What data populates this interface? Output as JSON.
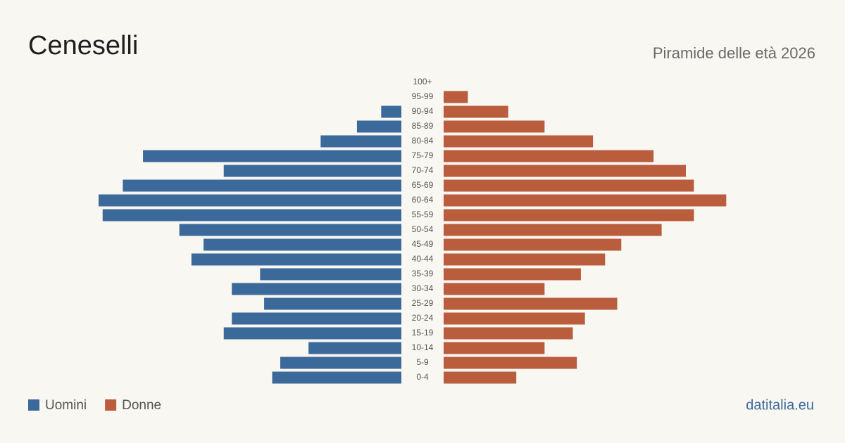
{
  "chart_data": {
    "type": "population-pyramid",
    "title": "Ceneselli",
    "subtitle": "Piramide delle età 2026",
    "source": "datitalia.eu",
    "categories": [
      "100+",
      "95-99",
      "90-94",
      "85-89",
      "80-84",
      "75-79",
      "70-74",
      "65-69",
      "60-64",
      "55-59",
      "50-54",
      "45-49",
      "40-44",
      "35-39",
      "30-34",
      "25-29",
      "20-24",
      "15-19",
      "10-14",
      "5-9",
      "0-4"
    ],
    "series": [
      {
        "name": "Uomini",
        "color": "#3b6a9a",
        "side": "left",
        "values": [
          0,
          0,
          5,
          11,
          20,
          64,
          44,
          69,
          75,
          74,
          55,
          49,
          52,
          35,
          42,
          34,
          42,
          44,
          23,
          30,
          32
        ]
      },
      {
        "name": "Donne",
        "color": "#b95d3c",
        "side": "right",
        "values": [
          0,
          6,
          16,
          25,
          37,
          52,
          60,
          62,
          70,
          62,
          54,
          44,
          40,
          34,
          25,
          43,
          35,
          32,
          25,
          33,
          18
        ]
      }
    ]
  }
}
